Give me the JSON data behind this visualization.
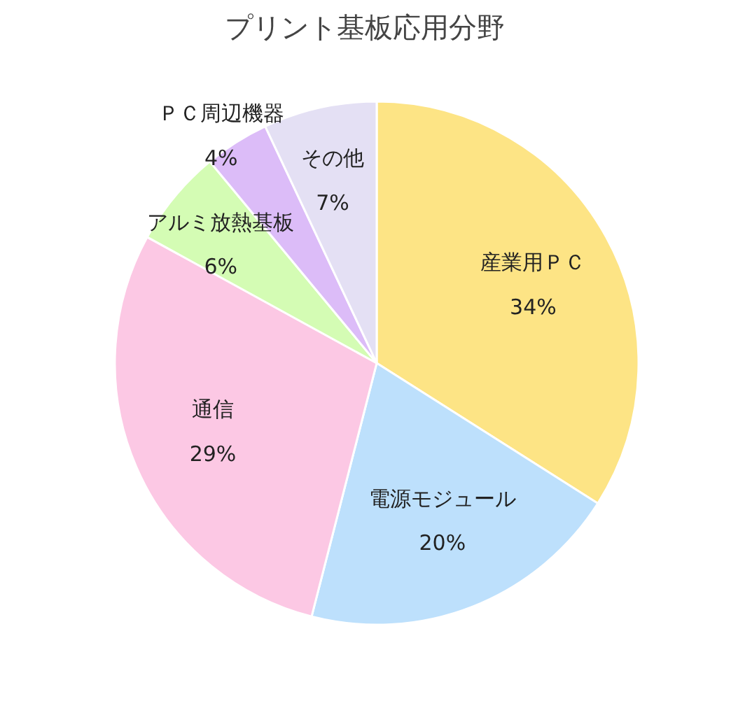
{
  "chart_data": {
    "type": "pie",
    "title": "プリント基板応用分野",
    "categories": [
      "産業用ＰＣ",
      "電源モジュール",
      "通信",
      "アルミ放熱基板",
      "ＰＣ周辺機器",
      "その他"
    ],
    "values": [
      34,
      20,
      29,
      6,
      4,
      7
    ],
    "colors": [
      "#fde485",
      "#bde0fc",
      "#fcc8e4",
      "#d4fcb4",
      "#dcbcf8",
      "#e4e0f4"
    ],
    "value_labels": [
      "34%",
      "20%",
      "29%",
      "6%",
      "4%",
      "7%"
    ]
  }
}
